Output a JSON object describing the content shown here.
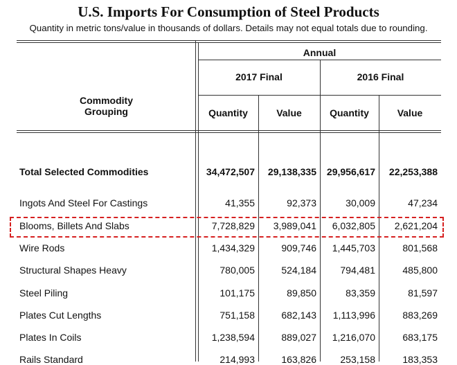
{
  "header": {
    "title": "U.S. Imports For Consumption of Steel Products",
    "subtitle": "Quantity in metric tons/value in thousands of dollars.  Details may not equal totals due to rounding."
  },
  "table": {
    "group_header": "Annual",
    "periods": [
      "2017 Final",
      "2016 Final"
    ],
    "row_header": "Commodity Grouping",
    "measures": [
      "Quantity",
      "Value",
      "Quantity",
      "Value"
    ],
    "rows": [
      [
        "Total Selected Commodities",
        "34,472,507",
        "29,138,335",
        "29,956,617",
        "22,253,388"
      ],
      [
        "Ingots And Steel For Castings",
        "41,355",
        "92,373",
        "30,009",
        "47,234"
      ],
      [
        "Blooms, Billets And Slabs",
        "7,728,829",
        "3,989,041",
        "6,032,805",
        "2,621,204"
      ],
      [
        "Wire Rods",
        "1,434,329",
        "909,746",
        "1,445,703",
        "801,568"
      ],
      [
        "Structural Shapes Heavy",
        "780,005",
        "524,184",
        "794,481",
        "485,800"
      ],
      [
        "Steel Piling",
        "101,175",
        "89,850",
        "83,359",
        "81,597"
      ],
      [
        "Plates Cut Lengths",
        "751,158",
        "682,143",
        "1,113,996",
        "883,269"
      ],
      [
        "Plates In Coils",
        "1,238,594",
        "889,027",
        "1,216,070",
        "683,175"
      ],
      [
        "Rails Standard",
        "214,993",
        "163,826",
        "253,158",
        "183,353"
      ]
    ]
  }
}
